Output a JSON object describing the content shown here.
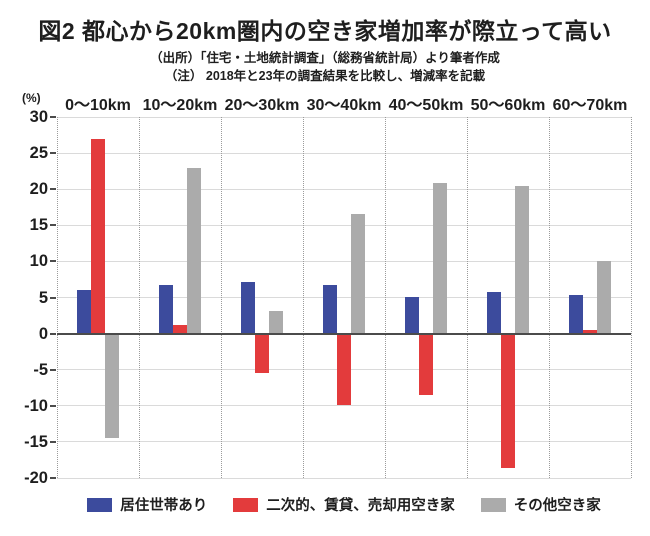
{
  "title": "図2 都心から20km圏内の空き家増加率が際立って高い",
  "source_note": "（出所）「住宅・土地統計調査」（総務省統計局）より筆者作成",
  "note": "（注） 2018年と23年の調査結果を比較し、増減率を記載",
  "unit_label": "(%)",
  "colors": {
    "series_blue": "#3C4B9D",
    "series_red": "#E33B3C",
    "series_gray": "#ABABAB",
    "grid": "#DADADA",
    "zero_line": "#4B4B4B",
    "separator": "#9B9B9B",
    "text": "#1E1E1E"
  },
  "chart_data": {
    "type": "bar",
    "title": "図2 都心から20km圏内の空き家増加率が際立って高い",
    "xlabel": "",
    "ylabel": "(%)",
    "ylim": [
      -20,
      30
    ],
    "yticks": [
      30,
      25,
      20,
      15,
      10,
      5,
      0,
      -5,
      -10,
      -15,
      -20
    ],
    "grid": true,
    "legend_position": "bottom",
    "categories": [
      "0〜10km",
      "10〜20km",
      "20〜30km",
      "30〜40km",
      "40〜50km",
      "50〜60km",
      "60〜70km"
    ],
    "series": [
      {
        "name": "居住世帯あり",
        "color_key": "series_blue",
        "values": [
          6.1,
          6.7,
          7.1,
          6.7,
          5.1,
          5.8,
          5.3
        ]
      },
      {
        "name": "二次的、賃貸、売却用空き家",
        "color_key": "series_red",
        "values": [
          26.9,
          1.2,
          -5.4,
          -9.9,
          -8.5,
          -18.6,
          0.5
        ]
      },
      {
        "name": "その他空き家",
        "color_key": "series_gray",
        "values": [
          -14.4,
          22.9,
          3.1,
          16.6,
          20.8,
          20.4,
          10.1
        ]
      }
    ]
  }
}
